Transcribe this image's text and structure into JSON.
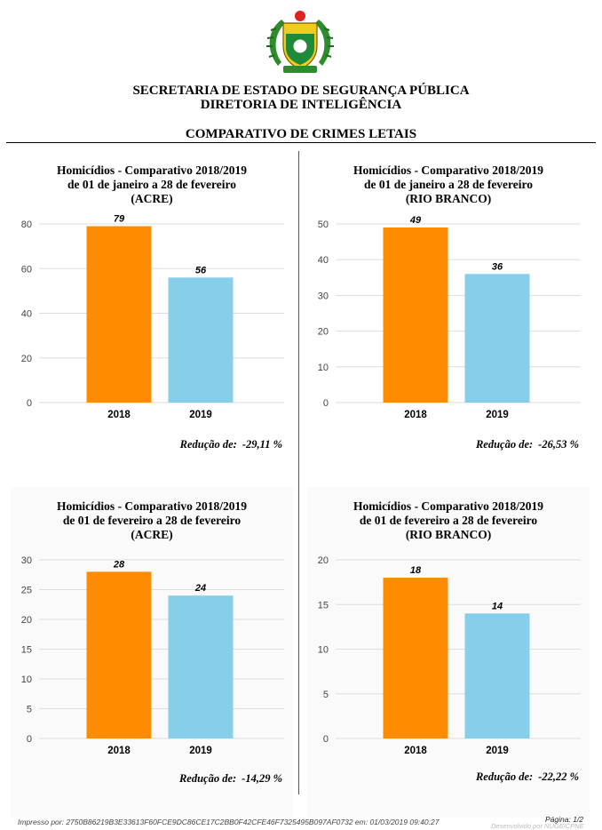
{
  "header": {
    "org_name": "SECRETARIA DE ESTADO DE SEGURANÇA PÚBLICA",
    "dept_name": "DIRETORIA DE INTELIGÊNCIA",
    "report_title": "COMPARATIVO DE CRIMES LETAIS"
  },
  "chart_data": [
    {
      "type": "bar",
      "title": "Homicídios - Comparativo 2018/2019",
      "subtitle": "de 01 de janeiro a 28 de fevereiro",
      "region": "(ACRE)",
      "categories": [
        "2018",
        "2019"
      ],
      "values": [
        79,
        56
      ],
      "ylim": [
        0,
        80
      ],
      "yticks": [
        0,
        20,
        40,
        60,
        80
      ],
      "colors": [
        "#FF8C00",
        "#87CEEB"
      ],
      "grid": true,
      "reduction_label": "Redução de:",
      "reduction_value": "-29,11 %"
    },
    {
      "type": "bar",
      "title": "Homicídios - Comparativo 2018/2019",
      "subtitle": "de 01 de janeiro a 28 de fevereiro",
      "region": "(RIO BRANCO)",
      "categories": [
        "2018",
        "2019"
      ],
      "values": [
        49,
        36
      ],
      "ylim": [
        0,
        50
      ],
      "yticks": [
        0,
        10,
        20,
        30,
        40,
        50
      ],
      "colors": [
        "#FF8C00",
        "#87CEEB"
      ],
      "grid": true,
      "reduction_label": "Redução de:",
      "reduction_value": "-26,53 %"
    },
    {
      "type": "bar",
      "title": "Homicídios - Comparativo 2018/2019",
      "subtitle": "de 01 de fevereiro a 28 de fevereiro",
      "region": "(ACRE)",
      "categories": [
        "2018",
        "2019"
      ],
      "values": [
        28,
        24
      ],
      "ylim": [
        0,
        30
      ],
      "yticks": [
        0,
        5,
        10,
        15,
        20,
        25,
        30
      ],
      "colors": [
        "#FF8C00",
        "#87CEEB"
      ],
      "grid": true,
      "reduction_label": "Redução de:",
      "reduction_value": "-14,29 %"
    },
    {
      "type": "bar",
      "title": "Homicídios - Comparativo 2018/2019",
      "subtitle": "de 01 de fevereiro a 28 de fevereiro",
      "region": "(RIO BRANCO)",
      "categories": [
        "2018",
        "2019"
      ],
      "values": [
        18,
        14
      ],
      "ylim": [
        0,
        20
      ],
      "yticks": [
        0,
        5,
        10,
        15,
        20
      ],
      "colors": [
        "#FF8C00",
        "#87CEEB"
      ],
      "grid": true,
      "reduction_label": "Redução de:",
      "reduction_value": "-22,22 %"
    }
  ],
  "footer": {
    "printed_by": "Impresso por: 2750B86219B3E33613F60FCE9DC86CE17C2BB0F42CFE46F7325495B097AF0732 em: 01/03/2019 09:40:27",
    "page": "Página: 1/2",
    "developed_by": "Desenvolvido por NUGE/CPNE"
  }
}
